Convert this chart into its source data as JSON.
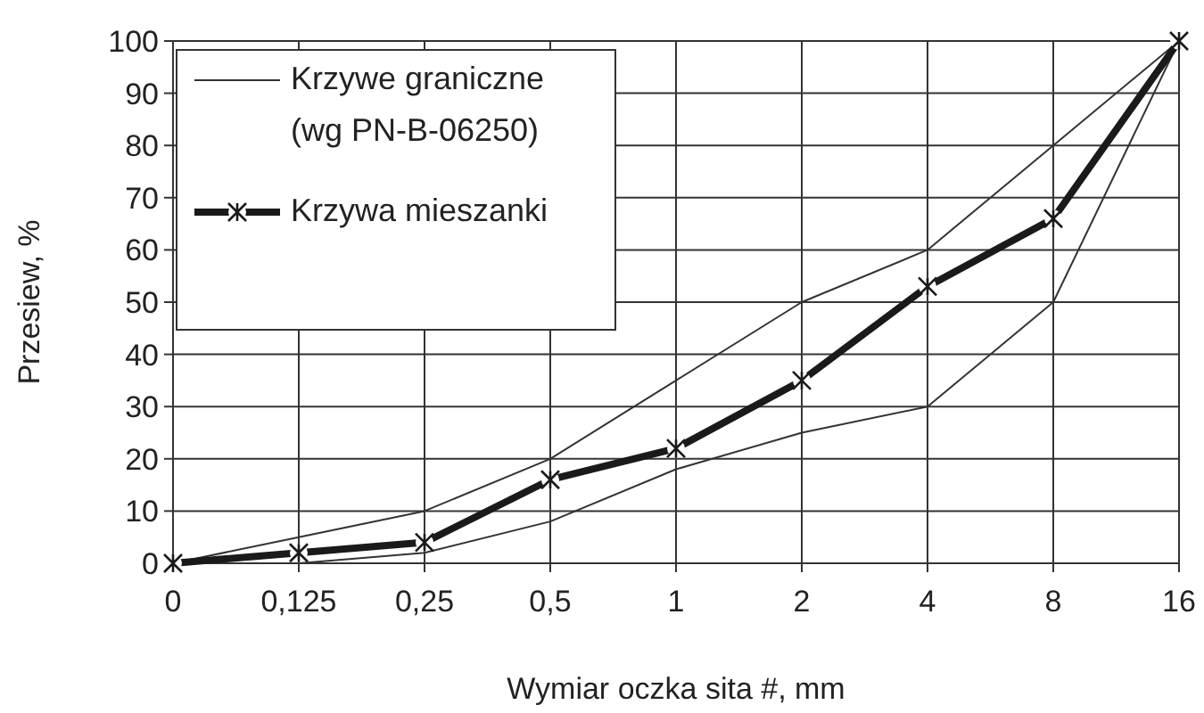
{
  "chart_data": {
    "type": "line",
    "xlabel": "Wymiar oczka sita #, mm",
    "ylabel": "Przesiew, %",
    "categories": [
      "0",
      "0,125",
      "0,25",
      "0,5",
      "1",
      "2",
      "4",
      "8",
      "16"
    ],
    "series": [
      {
        "name": "Krzywa mieszanki",
        "color": "#1a1a1a",
        "values": [
          0,
          2,
          4,
          16,
          22,
          35,
          53,
          66,
          100
        ],
        "marker": "cross",
        "upper": [
          0,
          5,
          10,
          20,
          35,
          50,
          60,
          80,
          100
        ],
        "lower": [
          0,
          0,
          2,
          8,
          18,
          25,
          30,
          50,
          100
        ]
      }
    ],
    "annotations": [
      "Krzywe graniczne (wg PN-B-06250)"
    ],
    "ylim": [
      0,
      100
    ],
    "yticks": [
      0,
      10,
      20,
      30,
      40,
      50,
      60,
      70,
      80,
      90,
      100
    ],
    "grid": true,
    "legend": "top left",
    "line_style": "solid"
  }
}
